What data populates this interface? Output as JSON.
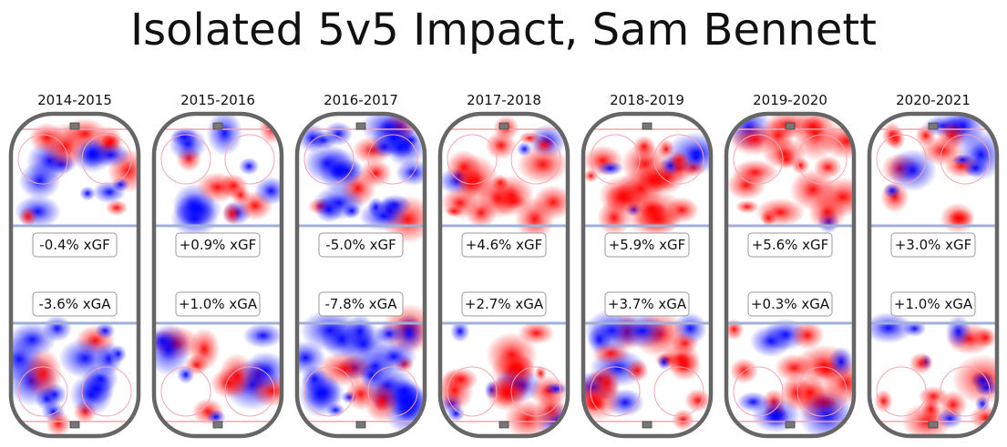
{
  "title": "Isolated 5v5 Impact, Sam Bennett",
  "chart_data": {
    "type": "heatmap",
    "title": "Isolated 5v5 Impact, Sam Bennett",
    "panels": [
      {
        "season": "2014-2015",
        "xgf": "-0.4% xGF",
        "xga": "-3.6% xGA",
        "xgf_value": -0.4,
        "xga_value": -3.6
      },
      {
        "season": "2015-2016",
        "xgf": "+0.9% xGF",
        "xga": "+1.0% xGA",
        "xgf_value": 0.9,
        "xga_value": 1.0
      },
      {
        "season": "2016-2017",
        "xgf": "-5.0% xGF",
        "xga": "-7.8% xGA",
        "xgf_value": -5.0,
        "xga_value": -7.8
      },
      {
        "season": "2017-2018",
        "xgf": "+4.6% xGF",
        "xga": "+2.7% xGA",
        "xgf_value": 4.6,
        "xga_value": 2.7
      },
      {
        "season": "2018-2019",
        "xgf": "+5.9% xGF",
        "xga": "+3.7% xGA",
        "xgf_value": 5.9,
        "xga_value": 3.7
      },
      {
        "season": "2019-2020",
        "xgf": "+5.6% xGF",
        "xga": "+0.3% xGA",
        "xgf_value": 5.6,
        "xga_value": 0.3
      },
      {
        "season": "2020-2021",
        "xgf": "+3.0% xGF",
        "xga": "+1.0% xGA",
        "xgf_value": 3.0,
        "xga_value": 1.0
      }
    ],
    "colors": {
      "positive": "#ff0000",
      "negative": "#0000ff",
      "rink_border": "#666666",
      "blue_line": "#9fb0d8",
      "red_line": "#f4a6b0"
    }
  }
}
